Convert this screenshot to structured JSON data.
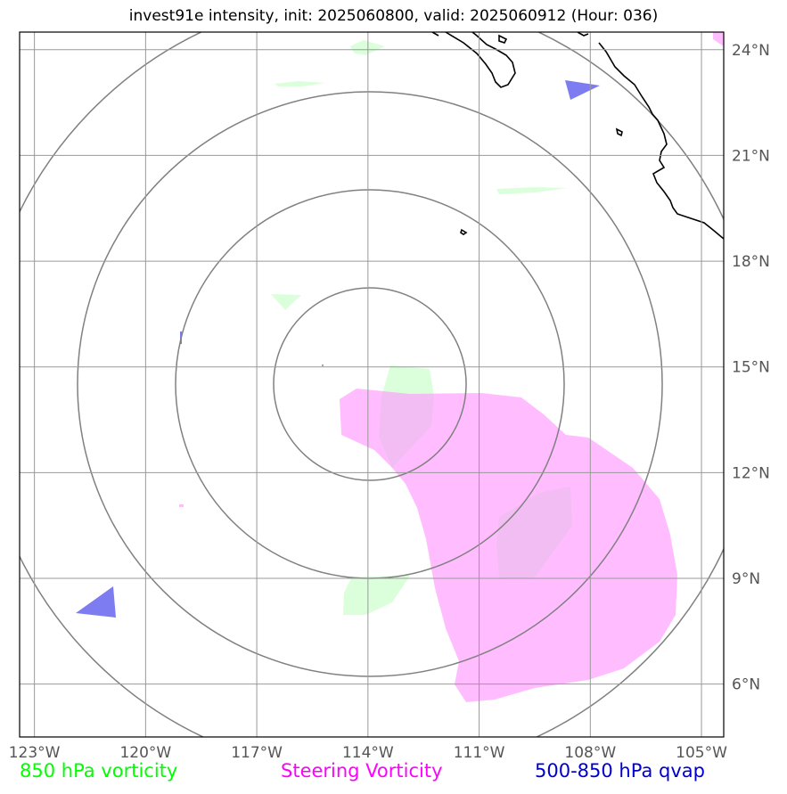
{
  "title": "invest91e intensity, init: 2025060800, valid: 2025060912 (Hour: 036)",
  "map": {
    "lon_range": [
      -123.4,
      -104.4
    ],
    "lat_range": [
      4.5,
      24.5
    ],
    "lon_ticks": [
      -123,
      -120,
      -117,
      -114,
      -111,
      -108,
      -105
    ],
    "lat_ticks": [
      6,
      9,
      12,
      15,
      18,
      21,
      24
    ],
    "lon_tick_labels": [
      "123°W",
      "120°W",
      "117°W",
      "114°W",
      "111°W",
      "108°W",
      "105°W"
    ],
    "lat_tick_labels": [
      "6°N",
      "9°N",
      "12°N",
      "15°N",
      "18°N",
      "21°N",
      "24°N"
    ],
    "grid": true,
    "storm_center": {
      "lon": -114.0,
      "lat": 14.4
    },
    "range_rings": 4,
    "colors": {
      "frame": "#000000",
      "grid": "#999999",
      "rings": "#808080",
      "coastline": "#000000",
      "vorticity_850": "#ccffcc",
      "steering_vorticity": "#ff99ff",
      "qvap": "#6666ee"
    }
  },
  "legend": {
    "item1": {
      "label": "850 hPa vorticity",
      "color": "#00ff00"
    },
    "item2": {
      "label": "Steering Vorticity",
      "color": "#ff00ff"
    },
    "item3": {
      "label": "500-850 hPa qvap",
      "color": "#0000cc"
    }
  }
}
